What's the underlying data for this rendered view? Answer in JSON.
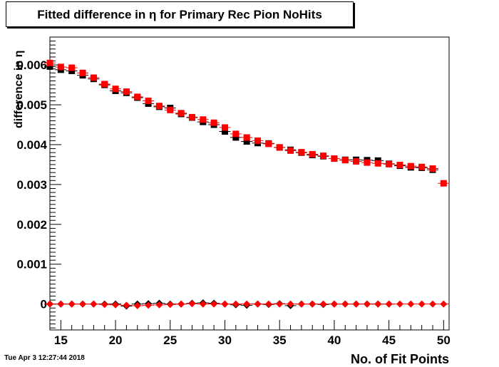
{
  "footer": {
    "date": "Tue Apr  3 12:27:44 2018"
  },
  "chart_data": {
    "type": "scatter",
    "title": "Fitted difference in  η for Primary Rec Pion NoHits",
    "xlabel": "No. of Fit Points",
    "ylabel": "difference in  η",
    "xlim": [
      14,
      50.5
    ],
    "ylim": [
      -0.00065,
      0.0067
    ],
    "x_ticks": [
      "15",
      "20",
      "25",
      "30",
      "35",
      "40",
      "45",
      "50"
    ],
    "y_ticks": [
      "0",
      "0.001",
      "0.002",
      "0.003",
      "0.004",
      "0.005",
      "0.006"
    ],
    "grid": false,
    "legend": "none",
    "colors": {
      "black": "#000000",
      "red": "#ff0000"
    },
    "series": [
      {
        "color": "#000000",
        "marker": "square",
        "x": [
          14,
          15,
          16,
          17,
          18,
          19,
          20,
          21,
          22,
          23,
          24,
          25,
          26,
          27,
          28,
          29,
          30,
          31,
          32,
          33,
          34,
          35,
          36,
          37,
          38,
          39,
          40,
          41,
          42,
          43,
          44,
          45,
          46,
          47,
          48,
          49
        ],
        "y": [
          0.00596,
          0.00588,
          0.00585,
          0.00574,
          0.00565,
          0.0055,
          0.00535,
          0.0053,
          0.00518,
          0.00503,
          0.00495,
          0.00492,
          0.00477,
          0.00468,
          0.00457,
          0.0045,
          0.00433,
          0.00418,
          0.00408,
          0.00404,
          0.00403,
          0.00393,
          0.00387,
          0.0038,
          0.00374,
          0.00371,
          0.00365,
          0.00362,
          0.00362,
          0.00361,
          0.0036,
          0.00352,
          0.00347,
          0.00343,
          0.00342,
          0.00337
        ]
      },
      {
        "color": "#ff0000",
        "marker": "square",
        "x": [
          14,
          15,
          16,
          17,
          18,
          19,
          20,
          21,
          22,
          23,
          24,
          25,
          26,
          27,
          28,
          29,
          30,
          31,
          32,
          33,
          34,
          35,
          36,
          37,
          38,
          39,
          40,
          41,
          42,
          43,
          44,
          45,
          46,
          47,
          48,
          49,
          50
        ],
        "y": [
          0.00605,
          0.00595,
          0.00593,
          0.0058,
          0.00568,
          0.00552,
          0.0054,
          0.00533,
          0.0052,
          0.0051,
          0.00497,
          0.00487,
          0.00479,
          0.00469,
          0.00463,
          0.00455,
          0.00443,
          0.00427,
          0.00418,
          0.0041,
          0.00402,
          0.00393,
          0.00385,
          0.00381,
          0.00376,
          0.00372,
          0.00365,
          0.00361,
          0.00358,
          0.00355,
          0.00353,
          0.00351,
          0.00349,
          0.00346,
          0.00344,
          0.0034,
          0.00303
        ]
      },
      {
        "color": "#000000",
        "marker": "diamond",
        "x": [
          14,
          15,
          16,
          17,
          18,
          19,
          20,
          21,
          22,
          23,
          24,
          25,
          26,
          27,
          28,
          29,
          30,
          31,
          32,
          33,
          34,
          35,
          36,
          37,
          38,
          39,
          40,
          41,
          42,
          43,
          44,
          45
        ],
        "y": [
          0.0,
          0.0,
          0.0,
          0.0,
          0.0,
          0.0,
          0.0,
          -5e-05,
          0.0,
          1e-05,
          2e-05,
          0.0,
          0.0,
          2e-05,
          3e-05,
          2e-05,
          0.0,
          -2e-05,
          -3e-05,
          0.0,
          -1e-05,
          1e-05,
          -4e-05,
          0.0,
          0.0,
          -1e-05,
          0.0,
          0.0,
          0.0,
          0.0,
          0.0,
          0.0
        ]
      },
      {
        "color": "#ff0000",
        "marker": "diamond",
        "x": [
          14,
          15,
          16,
          17,
          18,
          19,
          20,
          21,
          22,
          23,
          24,
          25,
          26,
          27,
          28,
          29,
          30,
          31,
          32,
          33,
          34,
          35,
          36,
          37,
          38,
          39,
          40,
          41,
          42,
          43,
          44,
          45,
          46,
          47,
          48,
          49,
          50
        ],
        "y": [
          0.0,
          0.0,
          0.0,
          0.0,
          0.0,
          -1e-05,
          -2e-05,
          -3e-05,
          -4e-05,
          -3e-05,
          -2e-05,
          -1e-05,
          0.0,
          1e-05,
          0.0,
          0.0,
          0.0,
          0.0,
          0.0,
          0.0,
          0.0,
          0.0,
          0.0,
          0.0,
          0.0,
          0.0,
          0.0,
          0.0,
          0.0,
          0.0,
          0.0,
          0.0,
          0.0,
          0.0,
          0.0,
          0.0,
          0.0
        ]
      }
    ]
  }
}
